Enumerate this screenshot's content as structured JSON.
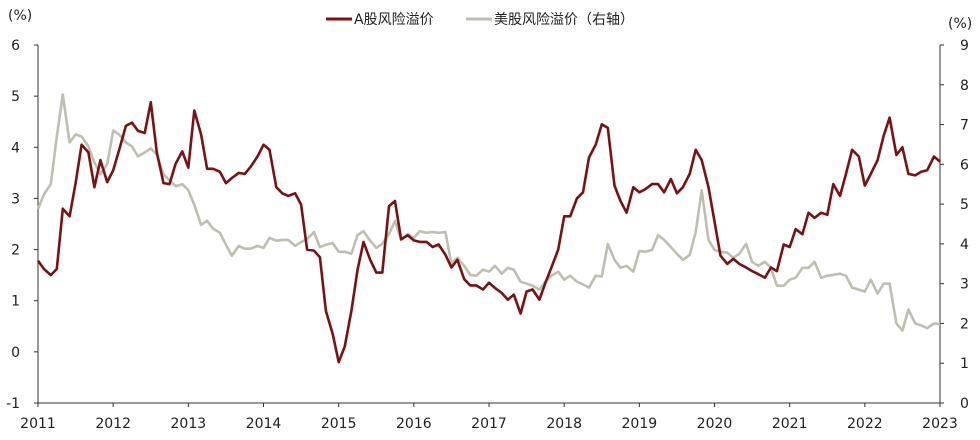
{
  "chart_data": {
    "type": "line",
    "title": "",
    "y_unit_left": "(%)",
    "y_unit_right": "(%)",
    "x_ticks": [
      "2011",
      "2012",
      "2013",
      "2014",
      "2015",
      "2016",
      "2017",
      "2018",
      "2019",
      "2020",
      "2021",
      "2022",
      "2023"
    ],
    "x_range": [
      2011.0,
      2023.0
    ],
    "ylim_left": [
      -1,
      6
    ],
    "yticks_left": [
      "-1",
      "0",
      "1",
      "2",
      "3",
      "4",
      "5",
      "6"
    ],
    "ylim_right": [
      0,
      9
    ],
    "yticks_right": [
      "0",
      "1",
      "2",
      "3",
      "4",
      "5",
      "6",
      "7",
      "8",
      "9"
    ],
    "legend_position": "top-center",
    "grid": false,
    "series": [
      {
        "name": "A股风险溢价",
        "axis": "left",
        "color": "#7b1113",
        "points": [
          [
            2011.0,
            1.78
          ],
          [
            2011.08,
            1.62
          ],
          [
            2011.17,
            1.5
          ],
          [
            2011.25,
            1.62
          ],
          [
            2011.33,
            2.8
          ],
          [
            2011.42,
            2.65
          ],
          [
            2011.5,
            3.3
          ],
          [
            2011.58,
            4.05
          ],
          [
            2011.67,
            3.9
          ],
          [
            2011.75,
            3.22
          ],
          [
            2011.83,
            3.75
          ],
          [
            2011.92,
            3.32
          ],
          [
            2012.0,
            3.55
          ],
          [
            2012.08,
            3.95
          ],
          [
            2012.17,
            4.42
          ],
          [
            2012.25,
            4.48
          ],
          [
            2012.33,
            4.32
          ],
          [
            2012.42,
            4.28
          ],
          [
            2012.5,
            4.88
          ],
          [
            2012.58,
            3.9
          ],
          [
            2012.67,
            3.3
          ],
          [
            2012.75,
            3.28
          ],
          [
            2012.83,
            3.68
          ],
          [
            2012.92,
            3.92
          ],
          [
            2013.0,
            3.6
          ],
          [
            2013.08,
            4.72
          ],
          [
            2013.17,
            4.25
          ],
          [
            2013.25,
            3.58
          ],
          [
            2013.33,
            3.58
          ],
          [
            2013.42,
            3.52
          ],
          [
            2013.5,
            3.3
          ],
          [
            2013.58,
            3.4
          ],
          [
            2013.67,
            3.5
          ],
          [
            2013.75,
            3.48
          ],
          [
            2013.83,
            3.62
          ],
          [
            2013.92,
            3.82
          ],
          [
            2014.0,
            4.05
          ],
          [
            2014.08,
            3.95
          ],
          [
            2014.17,
            3.22
          ],
          [
            2014.25,
            3.1
          ],
          [
            2014.33,
            3.05
          ],
          [
            2014.42,
            3.1
          ],
          [
            2014.5,
            2.88
          ],
          [
            2014.58,
            2.0
          ],
          [
            2014.67,
            1.98
          ],
          [
            2014.75,
            1.85
          ],
          [
            2014.83,
            0.8
          ],
          [
            2014.92,
            0.35
          ],
          [
            2015.0,
            -0.2
          ],
          [
            2015.08,
            0.1
          ],
          [
            2015.17,
            0.8
          ],
          [
            2015.25,
            1.6
          ],
          [
            2015.33,
            2.15
          ],
          [
            2015.42,
            1.8
          ],
          [
            2015.5,
            1.55
          ],
          [
            2015.58,
            1.55
          ],
          [
            2015.67,
            2.85
          ],
          [
            2015.75,
            2.95
          ],
          [
            2015.83,
            2.2
          ],
          [
            2015.92,
            2.28
          ],
          [
            2016.0,
            2.18
          ],
          [
            2016.08,
            2.15
          ],
          [
            2016.17,
            2.15
          ],
          [
            2016.25,
            2.05
          ],
          [
            2016.33,
            2.1
          ],
          [
            2016.42,
            1.9
          ],
          [
            2016.5,
            1.65
          ],
          [
            2016.58,
            1.8
          ],
          [
            2016.67,
            1.42
          ],
          [
            2016.75,
            1.3
          ],
          [
            2016.83,
            1.3
          ],
          [
            2016.92,
            1.22
          ],
          [
            2017.0,
            1.35
          ],
          [
            2017.08,
            1.25
          ],
          [
            2017.17,
            1.15
          ],
          [
            2017.25,
            1.02
          ],
          [
            2017.33,
            1.12
          ],
          [
            2017.42,
            0.75
          ],
          [
            2017.5,
            1.18
          ],
          [
            2017.58,
            1.22
          ],
          [
            2017.67,
            1.02
          ],
          [
            2017.75,
            1.35
          ],
          [
            2017.83,
            1.65
          ],
          [
            2017.92,
            2.0
          ],
          [
            2018.0,
            2.65
          ],
          [
            2018.08,
            2.65
          ],
          [
            2018.17,
            3.0
          ],
          [
            2018.25,
            3.12
          ],
          [
            2018.33,
            3.8
          ],
          [
            2018.42,
            4.05
          ],
          [
            2018.5,
            4.45
          ],
          [
            2018.58,
            4.38
          ],
          [
            2018.67,
            3.25
          ],
          [
            2018.75,
            2.95
          ],
          [
            2018.83,
            2.72
          ],
          [
            2018.92,
            3.22
          ],
          [
            2019.0,
            3.12
          ],
          [
            2019.08,
            3.18
          ],
          [
            2019.17,
            3.28
          ],
          [
            2019.25,
            3.28
          ],
          [
            2019.33,
            3.12
          ],
          [
            2019.42,
            3.38
          ],
          [
            2019.5,
            3.1
          ],
          [
            2019.58,
            3.22
          ],
          [
            2019.67,
            3.48
          ],
          [
            2019.75,
            3.95
          ],
          [
            2019.83,
            3.75
          ],
          [
            2019.92,
            3.22
          ],
          [
            2020.0,
            2.55
          ],
          [
            2020.08,
            1.88
          ],
          [
            2020.17,
            1.72
          ],
          [
            2020.25,
            1.82
          ],
          [
            2020.33,
            1.72
          ],
          [
            2020.42,
            1.65
          ],
          [
            2020.5,
            1.58
          ],
          [
            2020.58,
            1.52
          ],
          [
            2020.67,
            1.45
          ],
          [
            2020.75,
            1.65
          ],
          [
            2020.83,
            1.58
          ],
          [
            2020.92,
            2.1
          ],
          [
            2021.0,
            2.05
          ],
          [
            2021.08,
            2.4
          ],
          [
            2021.17,
            2.3
          ],
          [
            2021.25,
            2.72
          ],
          [
            2021.33,
            2.62
          ],
          [
            2021.42,
            2.72
          ],
          [
            2021.5,
            2.68
          ],
          [
            2021.58,
            3.28
          ],
          [
            2021.67,
            3.05
          ],
          [
            2021.75,
            3.48
          ],
          [
            2021.83,
            3.95
          ],
          [
            2021.92,
            3.82
          ],
          [
            2022.0,
            3.25
          ],
          [
            2022.08,
            3.48
          ],
          [
            2022.17,
            3.75
          ],
          [
            2022.25,
            4.22
          ],
          [
            2022.33,
            4.58
          ],
          [
            2022.42,
            3.85
          ],
          [
            2022.5,
            4.0
          ],
          [
            2022.58,
            3.48
          ],
          [
            2022.67,
            3.45
          ],
          [
            2022.75,
            3.52
          ],
          [
            2022.83,
            3.55
          ],
          [
            2022.92,
            3.82
          ],
          [
            2023.0,
            3.72
          ]
        ]
      },
      {
        "name": "美股风险溢价（右轴）",
        "axis": "right",
        "color": "#bfbfb0",
        "points": [
          [
            2011.0,
            4.88
          ],
          [
            2011.08,
            5.25
          ],
          [
            2011.17,
            5.5
          ],
          [
            2011.25,
            6.7
          ],
          [
            2011.33,
            7.75
          ],
          [
            2011.42,
            6.55
          ],
          [
            2011.5,
            6.75
          ],
          [
            2011.58,
            6.7
          ],
          [
            2011.67,
            6.45
          ],
          [
            2011.75,
            6.05
          ],
          [
            2011.83,
            5.75
          ],
          [
            2011.92,
            6.0
          ],
          [
            2012.0,
            6.85
          ],
          [
            2012.08,
            6.75
          ],
          [
            2012.17,
            6.55
          ],
          [
            2012.25,
            6.45
          ],
          [
            2012.33,
            6.2
          ],
          [
            2012.42,
            6.3
          ],
          [
            2012.5,
            6.4
          ],
          [
            2012.58,
            6.25
          ],
          [
            2012.67,
            5.75
          ],
          [
            2012.75,
            5.6
          ],
          [
            2012.83,
            5.45
          ],
          [
            2012.92,
            5.5
          ],
          [
            2013.0,
            5.35
          ],
          [
            2013.08,
            4.98
          ],
          [
            2013.17,
            4.48
          ],
          [
            2013.25,
            4.58
          ],
          [
            2013.33,
            4.38
          ],
          [
            2013.42,
            4.28
          ],
          [
            2013.5,
            3.98
          ],
          [
            2013.58,
            3.7
          ],
          [
            2013.67,
            3.95
          ],
          [
            2013.75,
            3.88
          ],
          [
            2013.83,
            3.88
          ],
          [
            2013.92,
            3.95
          ],
          [
            2014.0,
            3.9
          ],
          [
            2014.08,
            4.15
          ],
          [
            2014.17,
            4.08
          ],
          [
            2014.25,
            4.1
          ],
          [
            2014.33,
            4.1
          ],
          [
            2014.42,
            3.95
          ],
          [
            2014.5,
            4.05
          ],
          [
            2014.58,
            4.12
          ],
          [
            2014.67,
            4.3
          ],
          [
            2014.75,
            3.92
          ],
          [
            2014.83,
            3.98
          ],
          [
            2014.92,
            4.02
          ],
          [
            2015.0,
            3.8
          ],
          [
            2015.08,
            3.8
          ],
          [
            2015.17,
            3.75
          ],
          [
            2015.25,
            4.22
          ],
          [
            2015.33,
            4.32
          ],
          [
            2015.42,
            4.08
          ],
          [
            2015.5,
            3.9
          ],
          [
            2015.58,
            4.0
          ],
          [
            2015.67,
            4.25
          ],
          [
            2015.75,
            4.58
          ],
          [
            2015.83,
            4.1
          ],
          [
            2015.92,
            4.25
          ],
          [
            2016.0,
            4.15
          ],
          [
            2016.08,
            4.32
          ],
          [
            2016.17,
            4.28
          ],
          [
            2016.25,
            4.3
          ],
          [
            2016.33,
            4.28
          ],
          [
            2016.42,
            4.3
          ],
          [
            2016.5,
            3.5
          ],
          [
            2016.58,
            3.65
          ],
          [
            2016.67,
            3.45
          ],
          [
            2016.75,
            3.22
          ],
          [
            2016.83,
            3.2
          ],
          [
            2016.92,
            3.35
          ],
          [
            2017.0,
            3.3
          ],
          [
            2017.08,
            3.45
          ],
          [
            2017.17,
            3.25
          ],
          [
            2017.25,
            3.4
          ],
          [
            2017.33,
            3.35
          ],
          [
            2017.42,
            3.05
          ],
          [
            2017.5,
            3.0
          ],
          [
            2017.58,
            2.95
          ],
          [
            2017.67,
            2.85
          ],
          [
            2017.75,
            3.05
          ],
          [
            2017.83,
            3.2
          ],
          [
            2017.92,
            3.3
          ],
          [
            2018.0,
            3.1
          ],
          [
            2018.08,
            3.2
          ],
          [
            2018.17,
            3.05
          ],
          [
            2018.25,
            2.98
          ],
          [
            2018.33,
            2.9
          ],
          [
            2018.42,
            3.2
          ],
          [
            2018.5,
            3.18
          ],
          [
            2018.58,
            4.0
          ],
          [
            2018.67,
            3.6
          ],
          [
            2018.75,
            3.4
          ],
          [
            2018.83,
            3.45
          ],
          [
            2018.92,
            3.3
          ],
          [
            2019.0,
            3.82
          ],
          [
            2019.08,
            3.8
          ],
          [
            2019.17,
            3.85
          ],
          [
            2019.25,
            4.22
          ],
          [
            2019.33,
            4.1
          ],
          [
            2019.42,
            3.92
          ],
          [
            2019.5,
            3.75
          ],
          [
            2019.58,
            3.6
          ],
          [
            2019.67,
            3.72
          ],
          [
            2019.75,
            4.3
          ],
          [
            2019.83,
            5.35
          ],
          [
            2019.92,
            4.1
          ],
          [
            2020.0,
            3.85
          ],
          [
            2020.08,
            3.8
          ],
          [
            2020.17,
            3.78
          ],
          [
            2020.25,
            3.65
          ],
          [
            2020.33,
            3.75
          ],
          [
            2020.42,
            4.0
          ],
          [
            2020.5,
            3.55
          ],
          [
            2020.58,
            3.45
          ],
          [
            2020.67,
            3.55
          ],
          [
            2020.75,
            3.4
          ],
          [
            2020.83,
            2.95
          ],
          [
            2020.92,
            2.95
          ],
          [
            2021.0,
            3.1
          ],
          [
            2021.08,
            3.15
          ],
          [
            2021.17,
            3.4
          ],
          [
            2021.25,
            3.4
          ],
          [
            2021.33,
            3.55
          ],
          [
            2021.42,
            3.15
          ],
          [
            2021.5,
            3.2
          ],
          [
            2021.58,
            3.22
          ],
          [
            2021.67,
            3.25
          ],
          [
            2021.75,
            3.2
          ],
          [
            2021.83,
            2.9
          ],
          [
            2021.92,
            2.85
          ],
          [
            2022.0,
            2.8
          ],
          [
            2022.08,
            3.1
          ],
          [
            2022.17,
            2.75
          ],
          [
            2022.25,
            3.0
          ],
          [
            2022.33,
            3.0
          ],
          [
            2022.42,
            2.0
          ],
          [
            2022.5,
            1.82
          ],
          [
            2022.58,
            2.35
          ],
          [
            2022.67,
            2.0
          ],
          [
            2022.75,
            1.95
          ],
          [
            2022.83,
            1.88
          ],
          [
            2022.92,
            2.0
          ],
          [
            2023.0,
            1.98
          ]
        ]
      }
    ]
  }
}
